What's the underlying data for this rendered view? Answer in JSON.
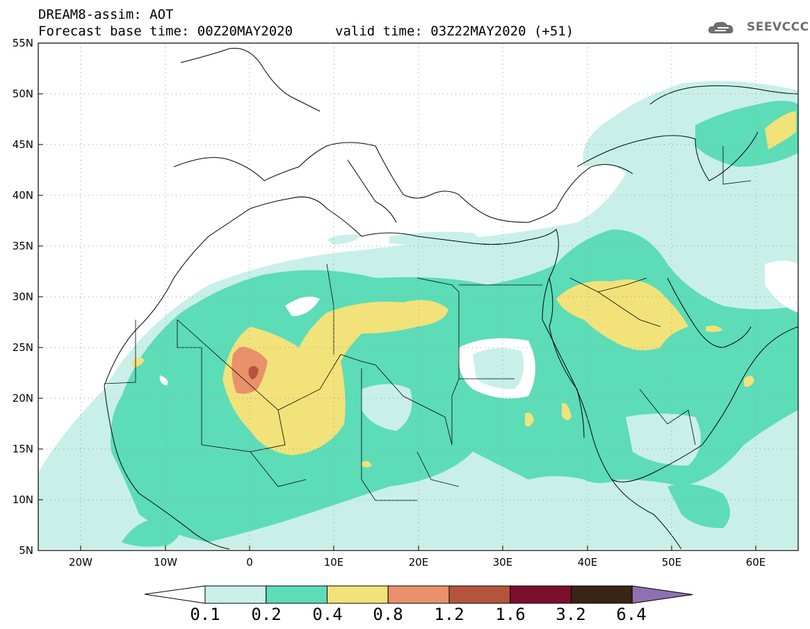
{
  "header": {
    "title": "DREAM8-assim: AOT",
    "base_time": "Forecast base time: 00Z20MAY2020",
    "valid_time": "valid time: 03Z22MAY2020 (+51)"
  },
  "logo": {
    "text": "SEEVCCC",
    "icon": "cloud-icon"
  },
  "map": {
    "lat_labels": [
      "55N",
      "50N",
      "45N",
      "40N",
      "35N",
      "30N",
      "25N",
      "20N",
      "15N",
      "10N",
      "5N"
    ],
    "lon_labels": [
      "20W",
      "10W",
      "0",
      "10E",
      "20E",
      "30E",
      "40E",
      "50E",
      "60E"
    ],
    "extent": {
      "lon": [
        -25,
        65
      ],
      "lat": [
        5,
        55
      ]
    },
    "grid": "dotted"
  },
  "colorbar": {
    "labels": [
      "0.1",
      "0.2",
      "0.4",
      "0.8",
      "1.2",
      "1.6",
      "3.2",
      "6.4"
    ],
    "colors": [
      "#c8f0e8",
      "#5ddcb8",
      "#f2e27a",
      "#e8916a",
      "#b4543e",
      "#7a0f2e",
      "#3a2414",
      "#9070b0"
    ]
  }
}
